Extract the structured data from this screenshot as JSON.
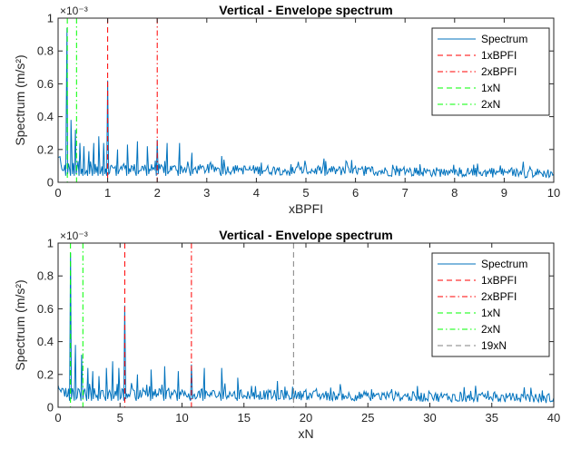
{
  "chart_data": [
    {
      "type": "line",
      "title": "Vertical - Envelope spectrum",
      "xlabel": "xBPFI",
      "ylabel": "Spectrum (m/s²)",
      "y_exponent": "×10⁻³",
      "xlim": [
        0,
        10
      ],
      "ylim": [
        0,
        1
      ],
      "xticks": [
        "0",
        "1",
        "2",
        "3",
        "4",
        "5",
        "6",
        "7",
        "8",
        "9",
        "10"
      ],
      "yticks": [
        "0",
        "0.2",
        "0.4",
        "0.6",
        "0.8",
        "1"
      ],
      "legend_position": "top-right",
      "series": [
        {
          "name": "Spectrum",
          "color": "#0072BD",
          "x": [
            0.18,
            0.26,
            0.35,
            0.44,
            0.52,
            0.62,
            0.72,
            0.82,
            0.92,
            1.0,
            1.2,
            1.4,
            1.6,
            1.8,
            2.0,
            2.2,
            2.45,
            2.7,
            3.3,
            4.1,
            4.7,
            5.4,
            6.2,
            7.3,
            8.1,
            9.2,
            9.8
          ],
          "y": [
            0.94,
            0.38,
            0.32,
            0.24,
            0.22,
            0.19,
            0.24,
            0.28,
            0.24,
            0.62,
            0.2,
            0.23,
            0.25,
            0.22,
            0.26,
            0.24,
            0.24,
            0.18,
            0.16,
            0.12,
            0.11,
            0.13,
            0.1,
            0.11,
            0.09,
            0.08,
            0.07
          ],
          "baseline": 0.055
        },
        {
          "name": "1xBPFI",
          "color": "#FF0000",
          "style": "dashed",
          "x": 1.0
        },
        {
          "name": "2xBPFI",
          "color": "#FF0000",
          "style": "dashdot",
          "x": 2.0
        },
        {
          "name": "1xN",
          "color": "#00FF00",
          "style": "dashed",
          "x": 0.186
        },
        {
          "name": "2xN",
          "color": "#00FF00",
          "style": "dashdot",
          "x": 0.372
        }
      ]
    },
    {
      "type": "line",
      "title": "Vertical - Envelope spectrum",
      "xlabel": "xN",
      "ylabel": "Spectrum (m/s²)",
      "y_exponent": "×10⁻³",
      "xlim": [
        0,
        40
      ],
      "ylim": [
        0,
        1
      ],
      "xticks": [
        "0",
        "5",
        "10",
        "15",
        "20",
        "25",
        "30",
        "35",
        "40"
      ],
      "yticks": [
        "0",
        "0.2",
        "0.4",
        "0.6",
        "0.8",
        "1"
      ],
      "legend_position": "top-right",
      "series": [
        {
          "name": "Spectrum",
          "color": "#0072BD",
          "x": [
            1.0,
            1.4,
            1.9,
            2.4,
            2.8,
            3.3,
            3.9,
            4.4,
            4.9,
            5.38,
            6.4,
            7.5,
            8.6,
            9.7,
            10.76,
            11.8,
            13.2,
            14.5,
            17.7,
            22.0,
            25.3,
            29.0,
            33.3,
            39.2
          ],
          "y": [
            0.94,
            0.38,
            0.32,
            0.24,
            0.22,
            0.19,
            0.24,
            0.28,
            0.24,
            0.62,
            0.2,
            0.23,
            0.25,
            0.22,
            0.26,
            0.24,
            0.24,
            0.18,
            0.16,
            0.12,
            0.11,
            0.13,
            0.1,
            0.07
          ],
          "baseline": 0.055
        },
        {
          "name": "1xBPFI",
          "color": "#FF0000",
          "style": "dashed",
          "x": 5.38
        },
        {
          "name": "2xBPFI",
          "color": "#FF0000",
          "style": "dashdot",
          "x": 10.76
        },
        {
          "name": "1xN",
          "color": "#00FF00",
          "style": "dashed",
          "x": 1.0
        },
        {
          "name": "2xN",
          "color": "#00FF00",
          "style": "dashdot",
          "x": 2.0
        },
        {
          "name": "19xN",
          "color": "#808080",
          "style": "dashed",
          "x": 19.0
        }
      ]
    }
  ]
}
